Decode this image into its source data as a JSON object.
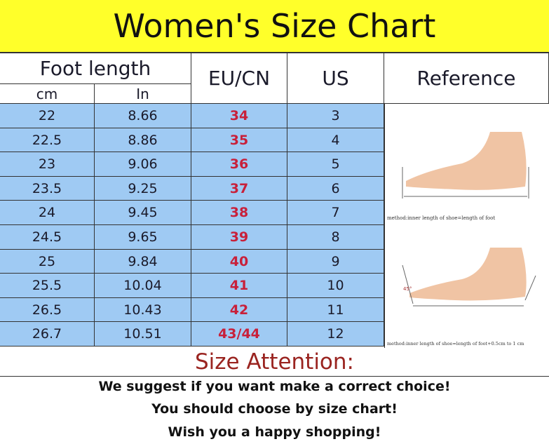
{
  "title": "Women's Size Chart",
  "headers": {
    "foot_length": "Foot length",
    "cm": "cm",
    "in": "In",
    "eu": "EU/CN",
    "us": "US",
    "reference": "Reference"
  },
  "rows": [
    {
      "cm": "22",
      "in": "8.66",
      "eu": "34",
      "us": "3"
    },
    {
      "cm": "22.5",
      "in": "8.86",
      "eu": "35",
      "us": "4"
    },
    {
      "cm": "23",
      "in": "9.06",
      "eu": "36",
      "us": "5"
    },
    {
      "cm": "23.5",
      "in": "9.25",
      "eu": "37",
      "us": "6"
    },
    {
      "cm": "24",
      "in": "9.45",
      "eu": "38",
      "us": "7"
    },
    {
      "cm": "24.5",
      "in": "9.65",
      "eu": "39",
      "us": "8"
    },
    {
      "cm": "25",
      "in": "9.84",
      "eu": "40",
      "us": "9"
    },
    {
      "cm": "25.5",
      "in": "10.04",
      "eu": "41",
      "us": "10"
    },
    {
      "cm": "26.5",
      "in": "10.43",
      "eu": "42",
      "us": "11"
    },
    {
      "cm": "26.7",
      "in": "10.51",
      "eu": "43/44",
      "us": "12"
    }
  ],
  "reference": {
    "caption1": "method:inner length of shoe=length of foot",
    "caption2": "method:inner length of shoe=length of foot+0.5cm to 1 cm",
    "angle": "45°"
  },
  "attention": {
    "title": "Size Attention:",
    "lines": [
      "We suggest if you want make a correct choice!",
      "You should choose by size chart!",
      "Wish you a happy shopping!"
    ]
  },
  "colors": {
    "title_bg": "#ffff2a",
    "row_bg": "#9fcaf3",
    "eu_text": "#c8203a",
    "attention_text": "#9a2420"
  }
}
